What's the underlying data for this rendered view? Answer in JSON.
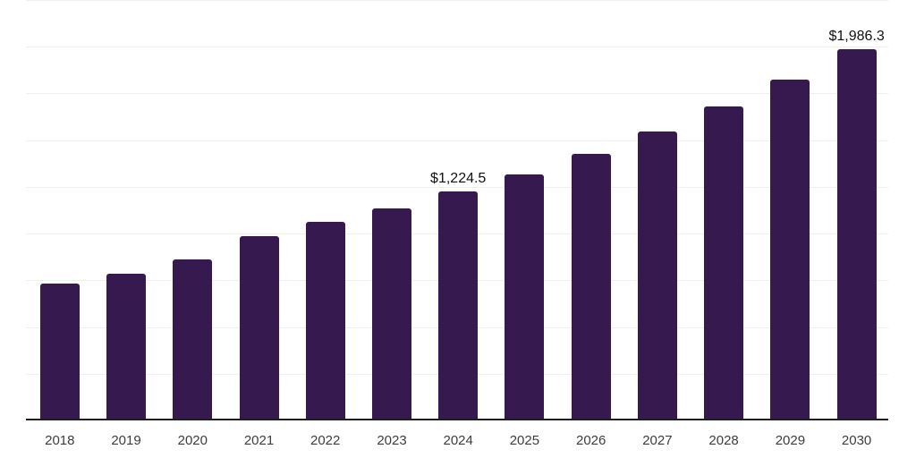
{
  "chart_data": {
    "type": "bar",
    "categories": [
      "2018",
      "2019",
      "2020",
      "2021",
      "2022",
      "2023",
      "2024",
      "2025",
      "2026",
      "2027",
      "2028",
      "2029",
      "2030"
    ],
    "values": [
      735,
      787,
      860,
      988,
      1061,
      1136,
      1224.5,
      1319,
      1428,
      1545,
      1681,
      1825,
      1986.3
    ],
    "data_labels": [
      {
        "category": "2024",
        "text": "$1,224.5"
      },
      {
        "category": "2030",
        "text": "$1,986.3"
      }
    ],
    "ylim": [
      0,
      2250
    ],
    "gridline_interval": 250,
    "grid": "horizontal-only",
    "legend": "none",
    "bar_color": "#361a4f",
    "gridline_color": "#f0f0f1",
    "axis_line_color": "#1f1f1f",
    "data_label_color": "#111111",
    "tick_label_color": "#3d3d3d"
  }
}
